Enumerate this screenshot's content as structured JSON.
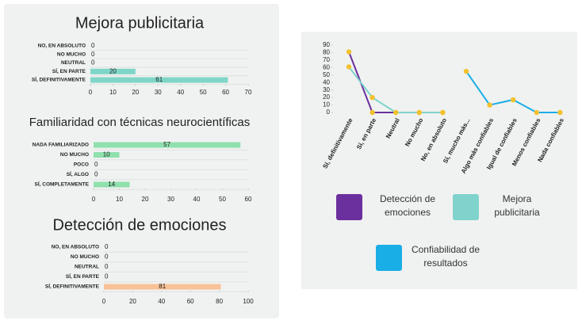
{
  "chart_data": [
    {
      "type": "hbar",
      "title": "Mejora publicitaria",
      "categories": [
        "NO, EN ABSOLUTO",
        "NO MUCHO",
        "NEUTRAL",
        "SÍ, EN PARTE",
        "SÍ, DEFINITIVAMENTE"
      ],
      "values": [
        0,
        0,
        0,
        20,
        61
      ],
      "color": "#7fd6c8",
      "xlim": [
        0,
        70
      ],
      "xticks": [
        0,
        10,
        20,
        30,
        40,
        50,
        60,
        70
      ]
    },
    {
      "type": "hbar",
      "title": "Familiaridad con técnicas neurocientíficas",
      "categories": [
        "NADA FAMILIARIZADO",
        "NO MUCHO",
        "POCO",
        "SÍ, ALGO",
        "SÍ, COMPLETAMENTE"
      ],
      "values": [
        57,
        10,
        0,
        0,
        14
      ],
      "color": "#8fe0ad",
      "xlim": [
        0,
        60
      ],
      "xticks": [
        0,
        10,
        20,
        30,
        40,
        50,
        60
      ]
    },
    {
      "type": "hbar",
      "title": "Detección de emociones",
      "categories": [
        "NO, EN ABSOLUTO",
        "NO MUCHO",
        "NEUTRAL",
        "SÍ, EN PARTE",
        "SÍ, DEFINITIVAMENTE"
      ],
      "values": [
        0,
        0,
        0,
        0,
        81
      ],
      "color": "#f9c196",
      "xlim": [
        0,
        100
      ],
      "xticks": [
        0,
        20,
        40,
        60,
        80,
        100
      ]
    },
    {
      "type": "line",
      "categories": [
        "Sí, definitivamente",
        "Sí, en parte",
        "Neutral",
        "No mucho",
        "No, en absoluto",
        "Sí, mucho más...",
        "Algo más confiables",
        "Igual de confiables",
        "Menos confiables",
        "Nada confiables"
      ],
      "series": [
        {
          "name": "Detección de emociones",
          "color": "#6b2f9e",
          "values": [
            81,
            0,
            0,
            0,
            0,
            null,
            null,
            null,
            null,
            null
          ]
        },
        {
          "name": "Mejora publicitaria",
          "color": "#7fd3cc",
          "values": [
            61,
            20,
            0,
            0,
            0,
            null,
            null,
            null,
            null,
            null
          ]
        },
        {
          "name": "Confiabilidad de resultados",
          "color": "#1aaee6",
          "values": [
            null,
            null,
            null,
            null,
            null,
            55,
            10,
            17,
            0,
            0
          ]
        }
      ],
      "marker_color": "#f2c12e",
      "ylim": [
        0,
        90
      ],
      "yticks": [
        0,
        10,
        20,
        30,
        40,
        50,
        60,
        70,
        80,
        90
      ]
    }
  ]
}
